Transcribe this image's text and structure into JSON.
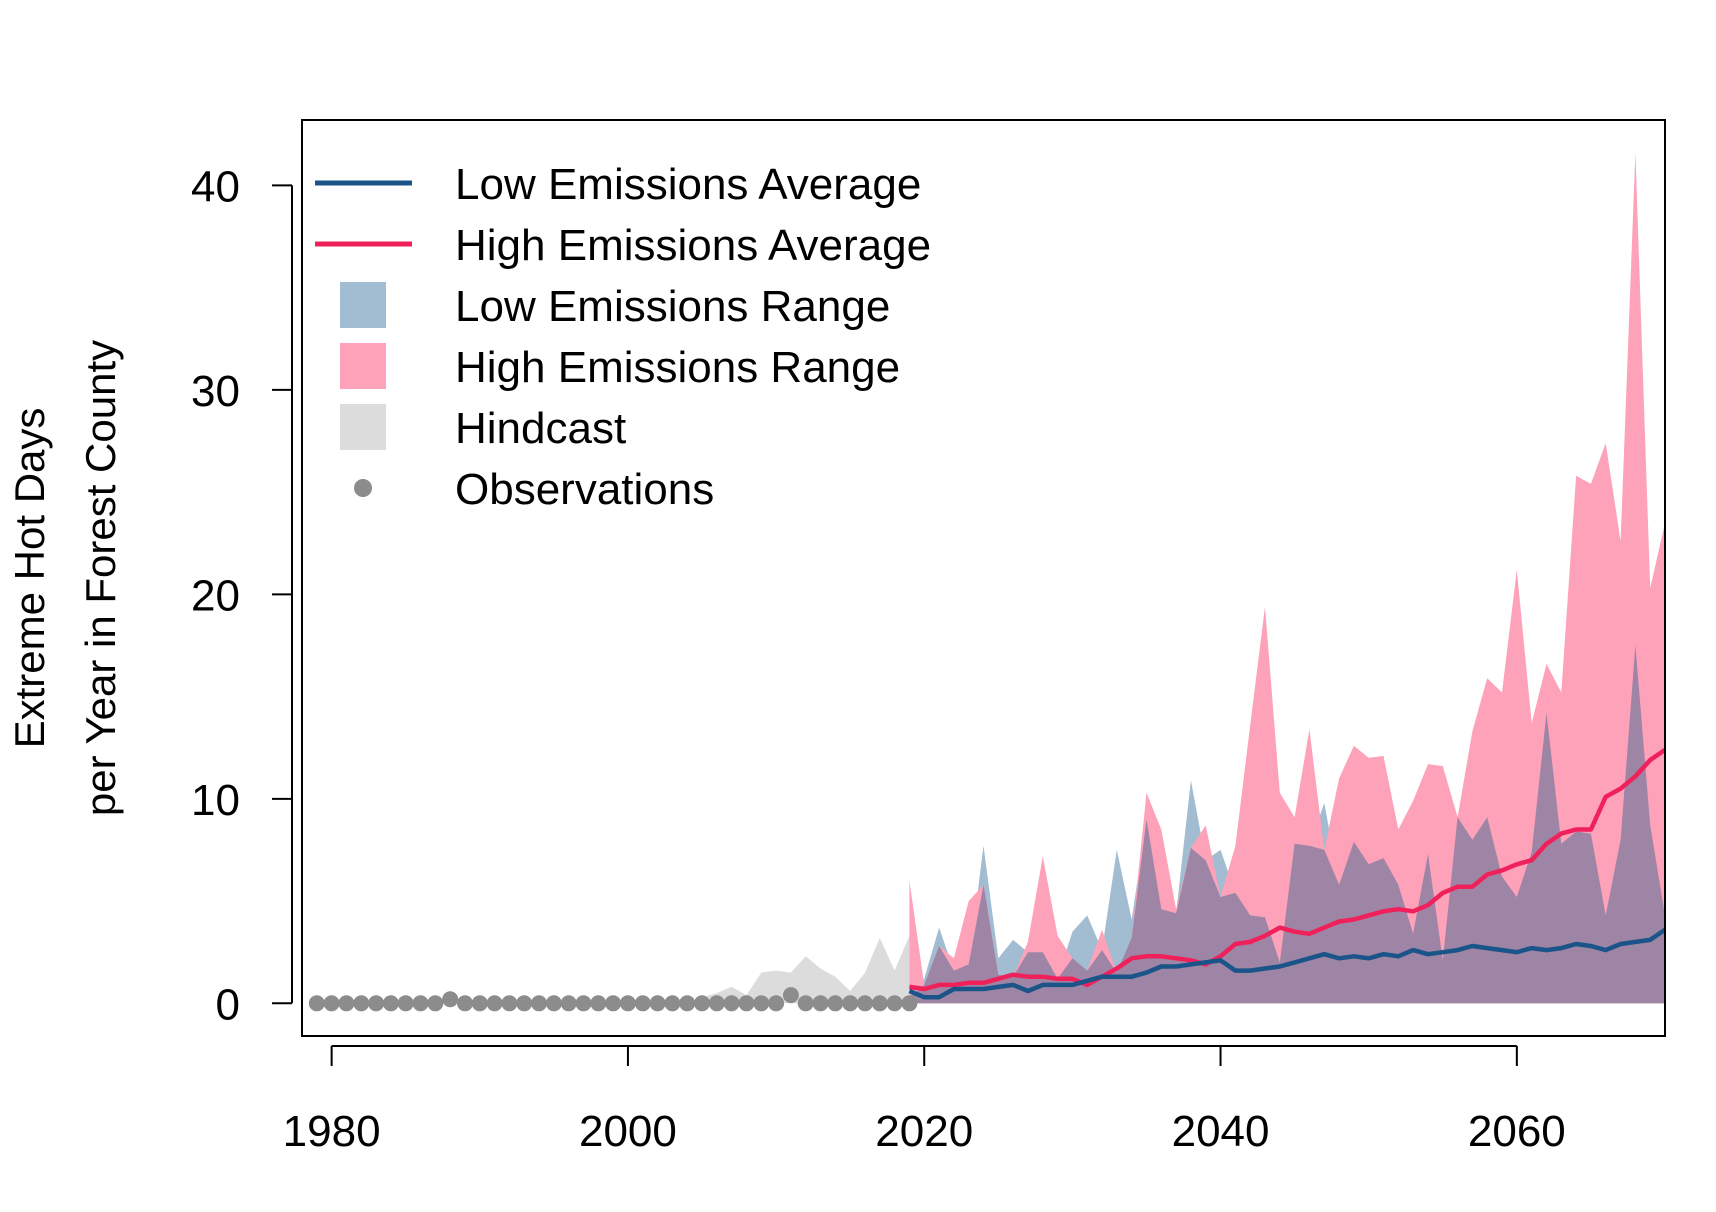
{
  "chart_data": {
    "type": "area",
    "title": "",
    "xlabel": "",
    "ylabel": [
      "Extreme Hot Days",
      "per Year in Forest County"
    ],
    "xlim": [
      1978,
      2070
    ],
    "ylim": [
      -1.6,
      43.2
    ],
    "xticks": [
      1980,
      2000,
      2020,
      2040,
      2060
    ],
    "yticks": [
      0,
      10,
      20,
      30,
      40
    ],
    "grid": false,
    "legend_position": "top-left",
    "legend": [
      {
        "label": "Low Emissions Average",
        "kind": "line",
        "color": "#1a5488"
      },
      {
        "label": "High Emissions Average",
        "kind": "line",
        "color": "#f0215a"
      },
      {
        "label": "Low Emissions Range",
        "kind": "fill",
        "color": "#a2bcd1"
      },
      {
        "label": "High Emissions Range",
        "kind": "fill",
        "color": "#fda2b9"
      },
      {
        "label": "Hindcast",
        "kind": "fill",
        "color": "#dcdcdc"
      },
      {
        "label": "Observations",
        "kind": "point",
        "color": "#8c8c8c"
      }
    ],
    "colors": {
      "low_line": "#1a5488",
      "high_line": "#f0215a",
      "low_fill": "#a2bcd1",
      "high_fill": "#fda2b9",
      "overlap_fill": "#9e85a6",
      "hindcast_fill": "#dcdcdc",
      "observations": "#8c8c8c"
    },
    "series": [
      {
        "name": "Observations",
        "kind": "points",
        "x": [
          1979,
          1980,
          1981,
          1982,
          1983,
          1984,
          1985,
          1986,
          1987,
          1988,
          1989,
          1990,
          1991,
          1992,
          1993,
          1994,
          1995,
          1996,
          1997,
          1998,
          1999,
          2000,
          2001,
          2002,
          2003,
          2004,
          2005,
          2006,
          2007,
          2008,
          2009,
          2010,
          2011,
          2012,
          2013,
          2014,
          2015,
          2016,
          2017,
          2018,
          2019
        ],
        "y": [
          0,
          0,
          0,
          0,
          0,
          0,
          0,
          0,
          0,
          0.2,
          0,
          0,
          0,
          0,
          0,
          0,
          0,
          0,
          0,
          0,
          0,
          0,
          0,
          0,
          0,
          0,
          0,
          0,
          0,
          0,
          0,
          0,
          0.4,
          0,
          0,
          0,
          0,
          0,
          0,
          0,
          0
        ]
      },
      {
        "name": "Hindcast",
        "kind": "range",
        "x": [
          2005,
          2006,
          2007,
          2008,
          2009,
          2010,
          2011,
          2012,
          2013,
          2014,
          2015,
          2016,
          2017,
          2018,
          2019
        ],
        "lower": [
          0,
          0,
          0,
          0,
          0,
          0,
          0,
          0,
          0,
          0,
          0,
          0,
          0,
          0,
          0
        ],
        "upper": [
          0.3,
          0.5,
          0.8,
          0.4,
          1.5,
          1.6,
          1.5,
          2.3,
          1.7,
          1.3,
          0.6,
          1.5,
          3.2,
          1.6,
          3.3
        ]
      },
      {
        "name": "Low Emissions Range",
        "kind": "range",
        "x": [
          2019,
          2020,
          2021,
          2022,
          2023,
          2024,
          2025,
          2026,
          2027,
          2028,
          2029,
          2030,
          2031,
          2032,
          2033,
          2034,
          2035,
          2036,
          2037,
          2038,
          2039,
          2040,
          2041,
          2042,
          2043,
          2044,
          2045,
          2046,
          2047,
          2048,
          2049,
          2050,
          2051,
          2052,
          2053,
          2054,
          2055,
          2056,
          2057,
          2058,
          2059,
          2060,
          2061,
          2062,
          2063,
          2064,
          2065,
          2066,
          2067,
          2068,
          2069,
          2070
        ],
        "lower": [
          0,
          0,
          0,
          0,
          0,
          0,
          0,
          0,
          0,
          0,
          0,
          0,
          0,
          0,
          0,
          0,
          0,
          0,
          0,
          0,
          0,
          0,
          0,
          0,
          0,
          0,
          0,
          0,
          0,
          0,
          0,
          0,
          0,
          0,
          0,
          0,
          0,
          0,
          0,
          0,
          0,
          0,
          0,
          0,
          0,
          0,
          0,
          0,
          0,
          0,
          0,
          0
        ],
        "upper": [
          0.3,
          1.2,
          3.7,
          1.6,
          1.9,
          7.7,
          2.2,
          3.1,
          2.5,
          2.5,
          1.2,
          3.5,
          4.3,
          2.6,
          7.5,
          4.1,
          9.0,
          4.6,
          4.4,
          10.9,
          7.0,
          7.5,
          5.4,
          4.3,
          4.2,
          2.0,
          7.8,
          7.7,
          9.8,
          5.8,
          7.9,
          6.8,
          7.1,
          5.8,
          3.4,
          7.3,
          2.1,
          9.2,
          8.0,
          9.1,
          6.2,
          5.2,
          7.4,
          14.2,
          7.8,
          8.4,
          8.3,
          4.3,
          8.0,
          17.5,
          8.7,
          4.3
        ]
      },
      {
        "name": "High Emissions Range",
        "kind": "range",
        "x": [
          2019,
          2020,
          2021,
          2022,
          2023,
          2024,
          2025,
          2026,
          2027,
          2028,
          2029,
          2030,
          2031,
          2032,
          2033,
          2034,
          2035,
          2036,
          2037,
          2038,
          2039,
          2040,
          2041,
          2042,
          2043,
          2044,
          2045,
          2046,
          2047,
          2048,
          2049,
          2050,
          2051,
          2052,
          2053,
          2054,
          2055,
          2056,
          2057,
          2058,
          2059,
          2060,
          2061,
          2062,
          2063,
          2064,
          2065,
          2066,
          2067,
          2068,
          2069,
          2070
        ],
        "lower": [
          0,
          0,
          0,
          0,
          0,
          0,
          0,
          0,
          0,
          0,
          0,
          0,
          0,
          0,
          0,
          0,
          0,
          0,
          0,
          0,
          0,
          0,
          0,
          0,
          0,
          0,
          0,
          0,
          0,
          0,
          0,
          0,
          0,
          0,
          0,
          0,
          0,
          0,
          0,
          0,
          0,
          0,
          0,
          0,
          0,
          0,
          0,
          0,
          0,
          0,
          0,
          0
        ],
        "upper": [
          6.0,
          0.9,
          2.8,
          2.2,
          5.0,
          5.8,
          1.4,
          1.3,
          3.0,
          7.2,
          3.3,
          2.2,
          1.6,
          3.6,
          1.5,
          3.2,
          10.3,
          8.5,
          4.6,
          7.6,
          8.7,
          5.2,
          7.7,
          13.6,
          19.4,
          10.3,
          9.1,
          13.4,
          7.5,
          11.0,
          12.6,
          12.0,
          12.1,
          8.5,
          9.9,
          11.7,
          11.6,
          9.1,
          13.3,
          15.9,
          15.2,
          21.2,
          13.7,
          16.6,
          15.2,
          25.8,
          25.4,
          27.4,
          22.6,
          41.6,
          20.3,
          23.5
        ]
      },
      {
        "name": "Low Emissions Average",
        "kind": "line",
        "x": [
          2019,
          2020,
          2021,
          2022,
          2023,
          2024,
          2025,
          2026,
          2027,
          2028,
          2029,
          2030,
          2031,
          2032,
          2033,
          2034,
          2035,
          2036,
          2037,
          2038,
          2039,
          2040,
          2041,
          2042,
          2043,
          2044,
          2045,
          2046,
          2047,
          2048,
          2049,
          2050,
          2051,
          2052,
          2053,
          2054,
          2055,
          2056,
          2057,
          2058,
          2059,
          2060,
          2061,
          2062,
          2063,
          2064,
          2065,
          2066,
          2067,
          2068,
          2069,
          2070
        ],
        "y": [
          0.6,
          0.3,
          0.3,
          0.7,
          0.7,
          0.7,
          0.8,
          0.9,
          0.6,
          0.9,
          0.9,
          0.9,
          1.1,
          1.3,
          1.3,
          1.3,
          1.5,
          1.8,
          1.8,
          1.9,
          2.0,
          2.1,
          1.6,
          1.6,
          1.7,
          1.8,
          2.0,
          2.2,
          2.4,
          2.2,
          2.3,
          2.2,
          2.4,
          2.3,
          2.6,
          2.4,
          2.5,
          2.6,
          2.8,
          2.7,
          2.6,
          2.5,
          2.7,
          2.6,
          2.7,
          2.9,
          2.8,
          2.6,
          2.9,
          3.0,
          3.1,
          3.6
        ]
      },
      {
        "name": "High Emissions Average",
        "kind": "line",
        "x": [
          2019,
          2020,
          2021,
          2022,
          2023,
          2024,
          2025,
          2026,
          2027,
          2028,
          2029,
          2030,
          2031,
          2032,
          2033,
          2034,
          2035,
          2036,
          2037,
          2038,
          2039,
          2040,
          2041,
          2042,
          2043,
          2044,
          2045,
          2046,
          2047,
          2048,
          2049,
          2050,
          2051,
          2052,
          2053,
          2054,
          2055,
          2056,
          2057,
          2058,
          2059,
          2060,
          2061,
          2062,
          2063,
          2064,
          2065,
          2066,
          2067,
          2068,
          2069,
          2070
        ],
        "y": [
          0.8,
          0.7,
          0.9,
          0.9,
          1.0,
          1.0,
          1.2,
          1.4,
          1.3,
          1.3,
          1.2,
          1.2,
          0.9,
          1.3,
          1.7,
          2.2,
          2.3,
          2.3,
          2.2,
          2.1,
          1.9,
          2.3,
          2.9,
          3.0,
          3.3,
          3.7,
          3.5,
          3.4,
          3.7,
          4.0,
          4.1,
          4.3,
          4.5,
          4.6,
          4.5,
          4.8,
          5.4,
          5.7,
          5.7,
          6.3,
          6.5,
          6.8,
          7.0,
          7.8,
          8.3,
          8.5,
          8.5,
          10.1,
          10.5,
          11.1,
          11.9,
          12.4
        ]
      }
    ]
  }
}
